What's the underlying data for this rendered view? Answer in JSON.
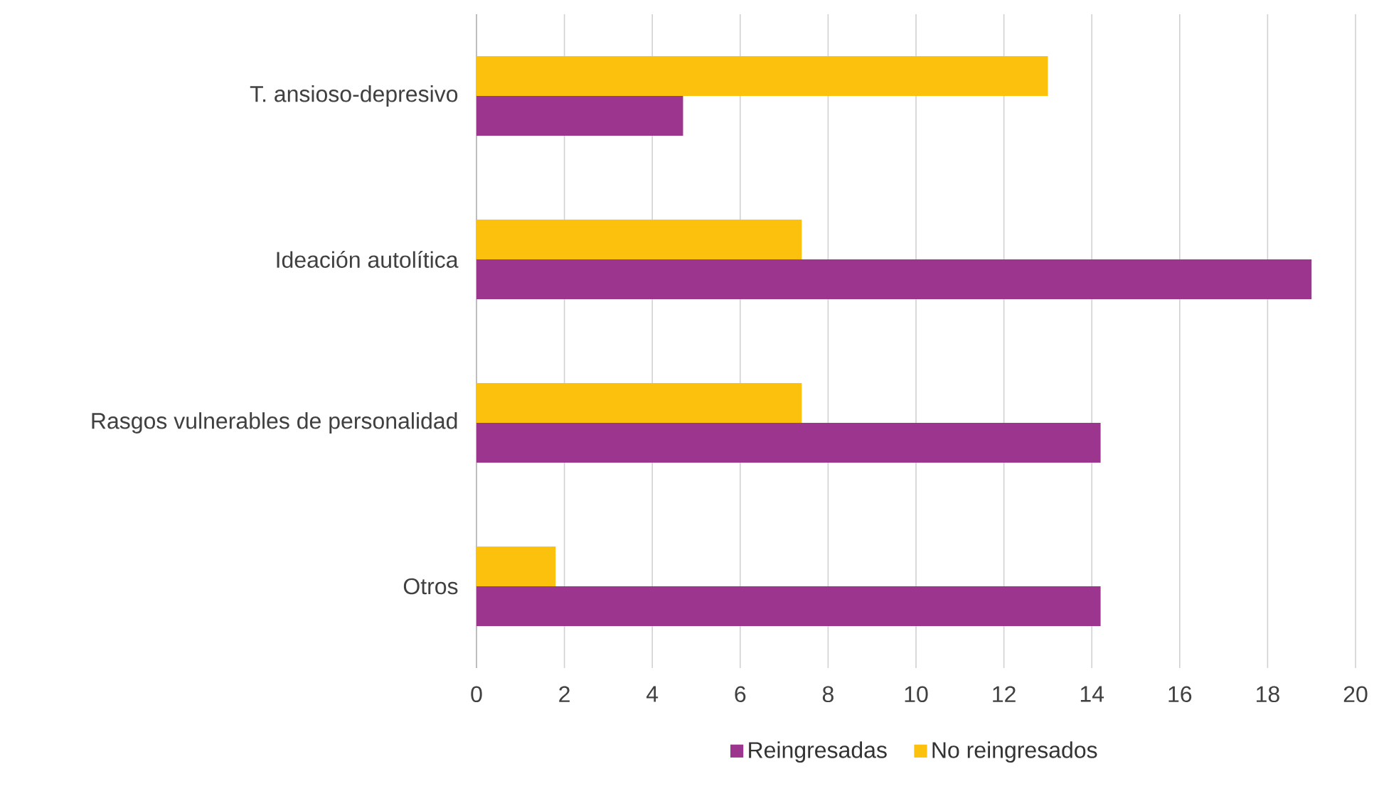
{
  "chart_data": {
    "type": "bar",
    "orientation": "horizontal",
    "categories": [
      "T. ansioso-depresivo",
      "Ideación autolítica",
      "Rasgos vulnerables de personalidad",
      "Otros"
    ],
    "series": [
      {
        "name": "Reingresadas",
        "color": "#9b358e",
        "values": [
          4.7,
          19.0,
          14.2,
          14.2
        ]
      },
      {
        "name": "No reingresados",
        "color": "#fbc10d",
        "values": [
          13.0,
          7.4,
          7.4,
          1.8
        ]
      }
    ],
    "xlim": [
      0,
      20
    ],
    "xticks": [
      0,
      2,
      4,
      6,
      8,
      10,
      12,
      14,
      16,
      18,
      20
    ],
    "grid": "x",
    "legend": "bottom"
  }
}
